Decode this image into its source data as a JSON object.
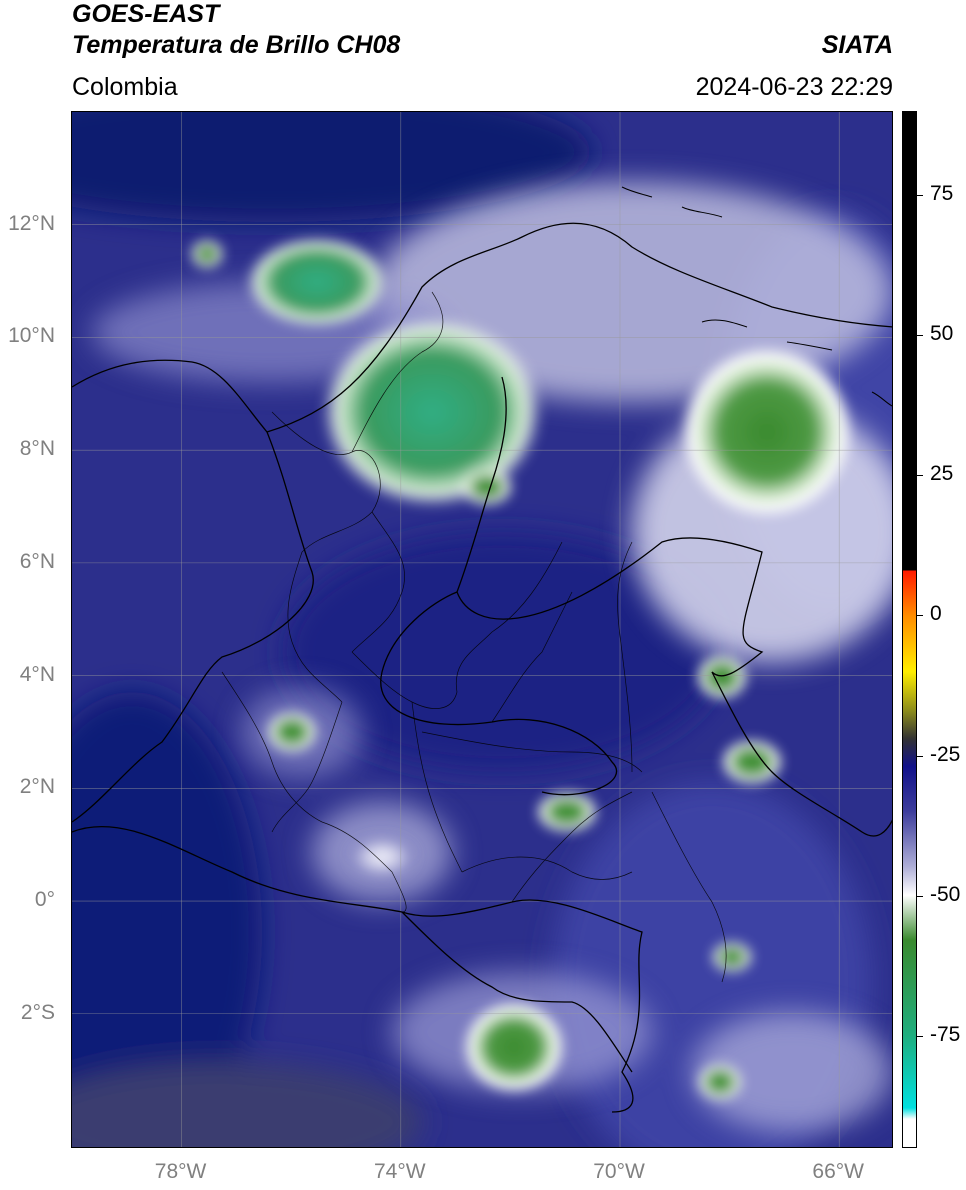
{
  "header": {
    "satellite": "GOES-EAST",
    "product": "Temperatura de Brillo CH08",
    "organization": "SIATA",
    "region": "Colombia",
    "timestamp": "2024-06-23 22:29"
  },
  "map": {
    "lon_range": [
      -80,
      -65.0
    ],
    "lat_range": [
      -4.4,
      14.0
    ],
    "lat_ticks": [
      {
        "value": 12,
        "label": "12°N"
      },
      {
        "value": 10,
        "label": "10°N"
      },
      {
        "value": 8,
        "label": "8°N"
      },
      {
        "value": 6,
        "label": "6°N"
      },
      {
        "value": 4,
        "label": "4°N"
      },
      {
        "value": 2,
        "label": "2°N"
      },
      {
        "value": 0,
        "label": "0°"
      },
      {
        "value": -2,
        "label": "2°S"
      }
    ],
    "lon_ticks": [
      {
        "value": -78,
        "label": "78°W"
      },
      {
        "value": -74,
        "label": "74°W"
      },
      {
        "value": -70,
        "label": "70°W"
      },
      {
        "value": -66,
        "label": "66°W"
      }
    ],
    "grid": true,
    "colors": {
      "cold_ocean": "#0d1a70",
      "mid_blue": "#3a3f9a",
      "cloud_white": "#ffffff",
      "deep_green": "#3a8a2e",
      "teal_green": "#2fae84"
    },
    "features": [
      {
        "name": "convective-cell-sierra-nevada",
        "lon": -73.6,
        "lat": 9.5
      },
      {
        "name": "convective-cell-caribbean-east",
        "lon": -67.1,
        "lat": 8.2
      },
      {
        "name": "convective-cell-amazon-south",
        "lon": -72.0,
        "lat": -3.1
      },
      {
        "name": "convective-cell-guajira-west",
        "lon": -76.0,
        "lat": 11.0
      }
    ]
  },
  "colorbar": {
    "ticks": [
      {
        "value": 75,
        "label": "75"
      },
      {
        "value": 50,
        "label": "50"
      },
      {
        "value": 25,
        "label": "25"
      },
      {
        "value": 0,
        "label": "0"
      },
      {
        "value": -25,
        "label": "-25"
      },
      {
        "value": -50,
        "label": "-50"
      },
      {
        "value": -75,
        "label": "-75"
      }
    ],
    "range": [
      -95,
      90
    ],
    "stops": [
      {
        "value": 90,
        "color": "#000000"
      },
      {
        "value": 8,
        "color": "#000000"
      },
      {
        "value": 8,
        "color": "#ff1a00"
      },
      {
        "value": 0,
        "color": "#ff8c00"
      },
      {
        "value": -10,
        "color": "#ffee00"
      },
      {
        "value": -17,
        "color": "#8c8c1a"
      },
      {
        "value": -22,
        "color": "#333333"
      },
      {
        "value": -27,
        "color": "#11118a"
      },
      {
        "value": -35,
        "color": "#3d3d9c"
      },
      {
        "value": -45,
        "color": "#b0b0d8"
      },
      {
        "value": -50,
        "color": "#ffffff"
      },
      {
        "value": -58,
        "color": "#3a8a2e"
      },
      {
        "value": -75,
        "color": "#1fae7e"
      },
      {
        "value": -88,
        "color": "#00e0e0"
      },
      {
        "value": -90,
        "color": "#ffffff"
      },
      {
        "value": -95,
        "color": "#ffffff"
      }
    ]
  }
}
